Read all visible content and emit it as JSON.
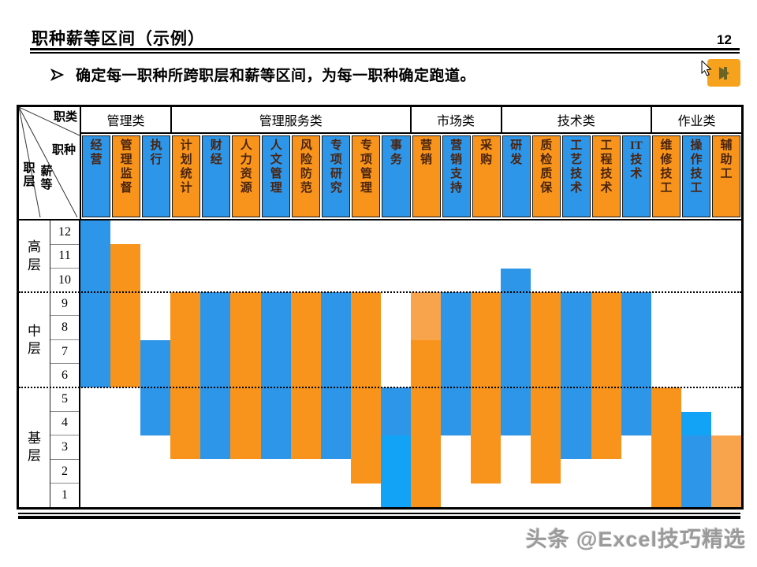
{
  "page": {
    "title": "职种薪等区间（示例）",
    "page_number": "12",
    "bullet": "确定每一职种所跨职层和薪等区间，为每一职种确定跑道。",
    "bullet_marker": "➢",
    "watermark": "头条 @Excel技巧精选"
  },
  "corner": {
    "top_right": "职类",
    "middle_right": "职种",
    "bottom_middle": "薪等",
    "bottom_left": "职层"
  },
  "table": {
    "groups": [
      {
        "label": "管理类",
        "span": 3
      },
      {
        "label": "管理服务类",
        "span": 8
      },
      {
        "label": "市场类",
        "span": 3
      },
      {
        "label": "技术类",
        "span": 5
      },
      {
        "label": "作业类",
        "span": 3
      }
    ],
    "levels": [
      {
        "label": "高层",
        "rows": 3
      },
      {
        "label": "中层",
        "rows": 4
      },
      {
        "label": "基层",
        "rows": 5
      }
    ],
    "grades": [
      12,
      11,
      10,
      9,
      8,
      7,
      6,
      5,
      4,
      3,
      2,
      1
    ]
  },
  "colors": {
    "blue": "#2D96E9",
    "blue_bright": "#12A3F6",
    "orange": "#F8941B",
    "orange_light": "#F7A44C"
  },
  "chart_data": {
    "type": "bar",
    "subtype": "floating-range-columns",
    "title": "职种薪等区间（示例）",
    "ylabel": "薪等",
    "ylim": [
      1,
      12
    ],
    "grid": "dotted level dividers after grade 10 and grade 6",
    "legend_position": "none",
    "columns": [
      {
        "label": "经营",
        "color": "blue",
        "grade_min": 6,
        "grade_max": 12
      },
      {
        "label": "管理监督",
        "color": "orange",
        "grade_min": 6,
        "grade_max": 11
      },
      {
        "label": "执行",
        "color": "blue",
        "grade_min": 4,
        "grade_max": 7
      },
      {
        "label": "计划统计",
        "color": "orange",
        "grade_min": 3,
        "grade_max": 9
      },
      {
        "label": "财经",
        "color": "blue",
        "grade_min": 3,
        "grade_max": 9
      },
      {
        "label": "人力资源",
        "color": "orange",
        "grade_min": 3,
        "grade_max": 9
      },
      {
        "label": "人文管理",
        "color": "blue",
        "grade_min": 3,
        "grade_max": 9
      },
      {
        "label": "风险防范",
        "color": "orange",
        "grade_min": 3,
        "grade_max": 9
      },
      {
        "label": "专项研究",
        "color": "blue",
        "grade_min": 3,
        "grade_max": 9
      },
      {
        "label": "专项管理",
        "color": "orange",
        "grade_min": 2,
        "grade_max": 9
      },
      {
        "label": "事务",
        "color": "blue",
        "grade_min": 1,
        "grade_max": 5,
        "segments": [
          {
            "grade_min": 4,
            "grade_max": 5,
            "color": "blue"
          },
          {
            "grade_min": 1,
            "grade_max": 3,
            "color": "blue_bright"
          }
        ]
      },
      {
        "label": "营销",
        "color": "orange",
        "grade_min": 1,
        "grade_max": 9,
        "segments": [
          {
            "grade_min": 8,
            "grade_max": 9,
            "color": "orange_light"
          },
          {
            "grade_min": 1,
            "grade_max": 7,
            "color": "orange"
          }
        ]
      },
      {
        "label": "营销支持",
        "color": "blue",
        "grade_min": 4,
        "grade_max": 9
      },
      {
        "label": "采购",
        "color": "orange",
        "grade_min": 2,
        "grade_max": 9
      },
      {
        "label": "研发",
        "color": "blue",
        "grade_min": 4,
        "grade_max": 10
      },
      {
        "label": "质检质保",
        "color": "orange",
        "grade_min": 2,
        "grade_max": 9
      },
      {
        "label": "工艺技术",
        "color": "blue",
        "grade_min": 3,
        "grade_max": 9
      },
      {
        "label": "工程技术",
        "color": "orange",
        "grade_min": 3,
        "grade_max": 9
      },
      {
        "label": "IT技术",
        "color": "blue",
        "grade_min": 4,
        "grade_max": 9
      },
      {
        "label": "维修技工",
        "color": "orange",
        "grade_min": 1,
        "grade_max": 5
      },
      {
        "label": "操作技工",
        "color": "blue",
        "grade_min": 1,
        "grade_max": 4,
        "segments": [
          {
            "grade_min": 4,
            "grade_max": 4,
            "color": "blue_bright"
          },
          {
            "grade_min": 1,
            "grade_max": 3,
            "color": "blue"
          }
        ]
      },
      {
        "label": "辅助工",
        "color": "orange",
        "grade_min": 1,
        "grade_max": 3,
        "segments": [
          {
            "grade_min": 1,
            "grade_max": 3,
            "color": "orange_light"
          }
        ]
      }
    ]
  }
}
